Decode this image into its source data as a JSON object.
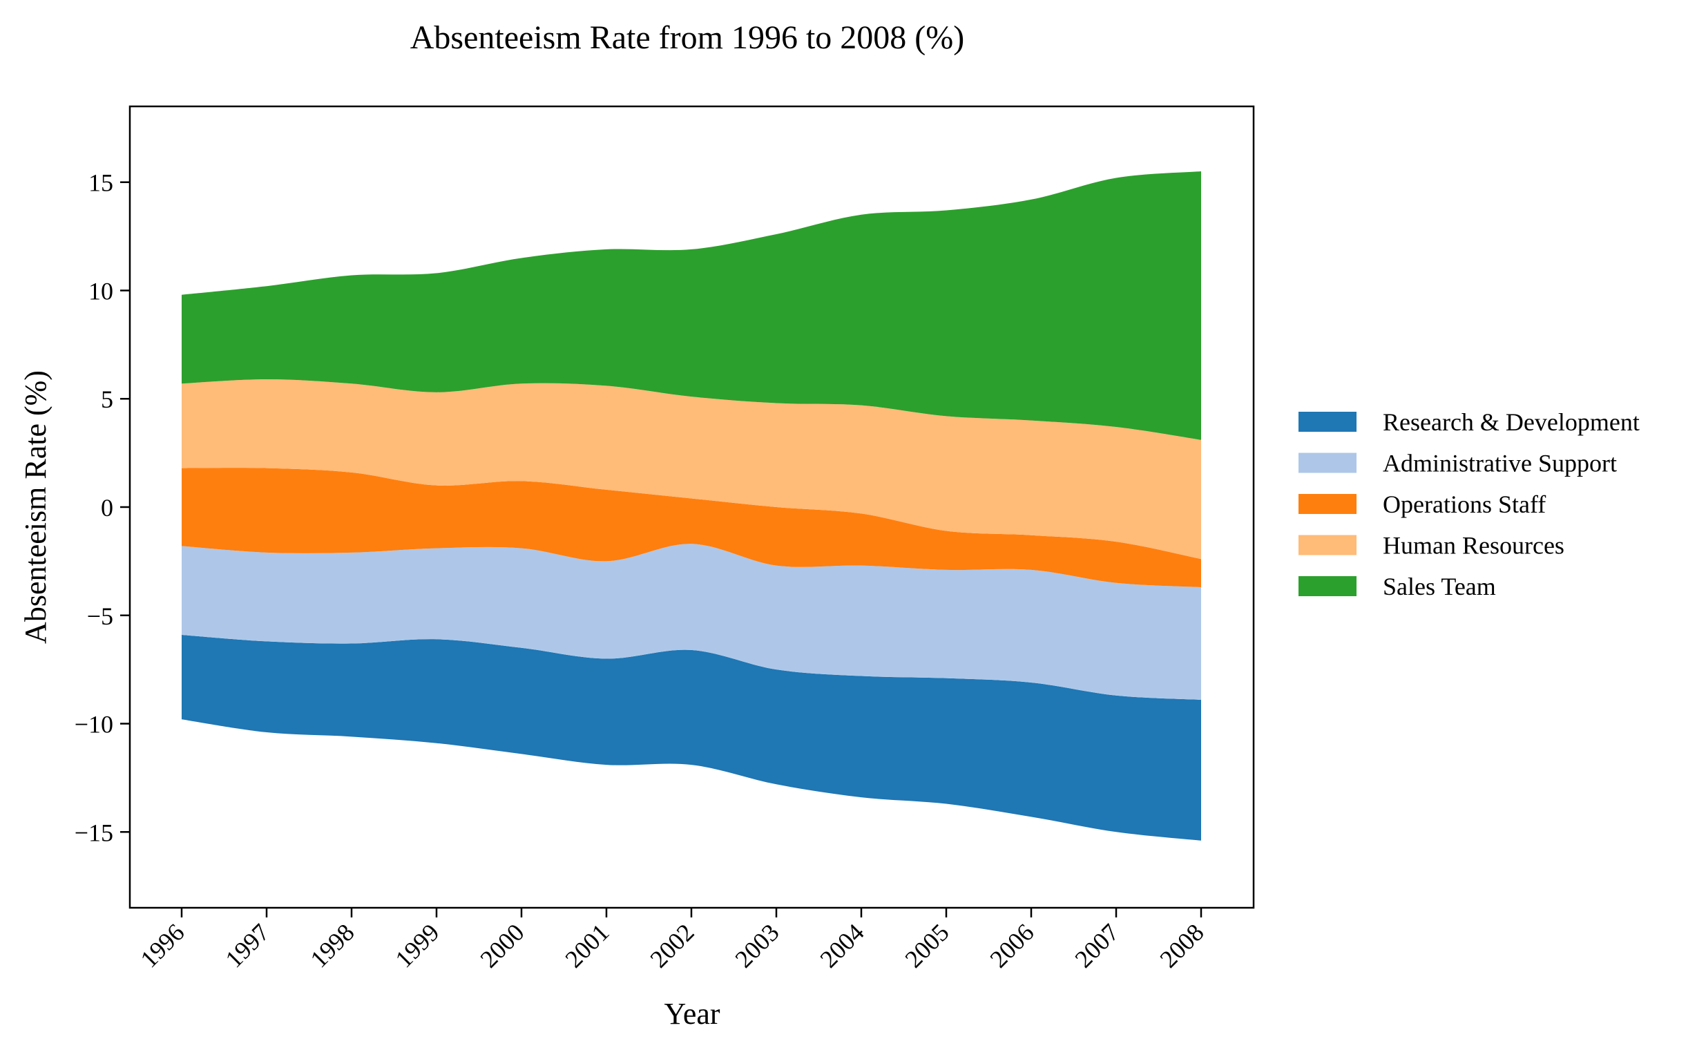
{
  "chart_data": {
    "type": "area",
    "layout": "streamgraph",
    "title": "Absenteeism Rate from 1996 to 2008 (%)",
    "xlabel": "Year",
    "ylabel": "Absenteeism Rate (%)",
    "x": [
      "1996",
      "1997",
      "1998",
      "1999",
      "2000",
      "2001",
      "2002",
      "2003",
      "2004",
      "2005",
      "2006",
      "2007",
      "2008"
    ],
    "ylim": [
      -18.5,
      18.5
    ],
    "yticks": [
      -15,
      -10,
      -5,
      0,
      5,
      10,
      15
    ],
    "ytick_labels": [
      "−15",
      "−10",
      "−5",
      "0",
      "5",
      "10",
      "15"
    ],
    "grid": false,
    "legend": "right",
    "baseline_bottom": [
      -9.8,
      -10.4,
      -10.6,
      -10.9,
      -11.4,
      -11.9,
      -11.9,
      -12.8,
      -13.4,
      -13.7,
      -14.3,
      -15.0,
      -15.4
    ],
    "series": [
      {
        "name": "Research & Development",
        "color": "#1f77b4",
        "values": [
          3.9,
          4.2,
          4.3,
          4.8,
          4.9,
          4.9,
          5.3,
          5.3,
          5.6,
          5.8,
          6.2,
          6.3,
          6.5
        ]
      },
      {
        "name": "Administrative Support",
        "color": "#aec7e8",
        "values": [
          4.1,
          4.1,
          4.2,
          4.2,
          4.6,
          4.5,
          4.9,
          4.8,
          5.1,
          5.0,
          5.2,
          5.2,
          5.2
        ]
      },
      {
        "name": "Operations Staff",
        "color": "#ff7f0e",
        "values": [
          3.6,
          3.9,
          3.7,
          2.9,
          3.1,
          3.3,
          2.1,
          2.7,
          2.4,
          1.8,
          1.6,
          1.9,
          1.3
        ]
      },
      {
        "name": "Human Resources",
        "color": "#ffbb78",
        "values": [
          3.9,
          4.1,
          4.1,
          4.3,
          4.5,
          4.8,
          4.7,
          4.8,
          5.0,
          5.3,
          5.3,
          5.3,
          5.5
        ]
      },
      {
        "name": "Sales Team",
        "color": "#2ca02c",
        "values": [
          4.1,
          4.3,
          5.0,
          5.5,
          5.8,
          6.3,
          6.8,
          7.8,
          8.8,
          9.5,
          10.2,
          11.5,
          12.4
        ]
      }
    ]
  }
}
